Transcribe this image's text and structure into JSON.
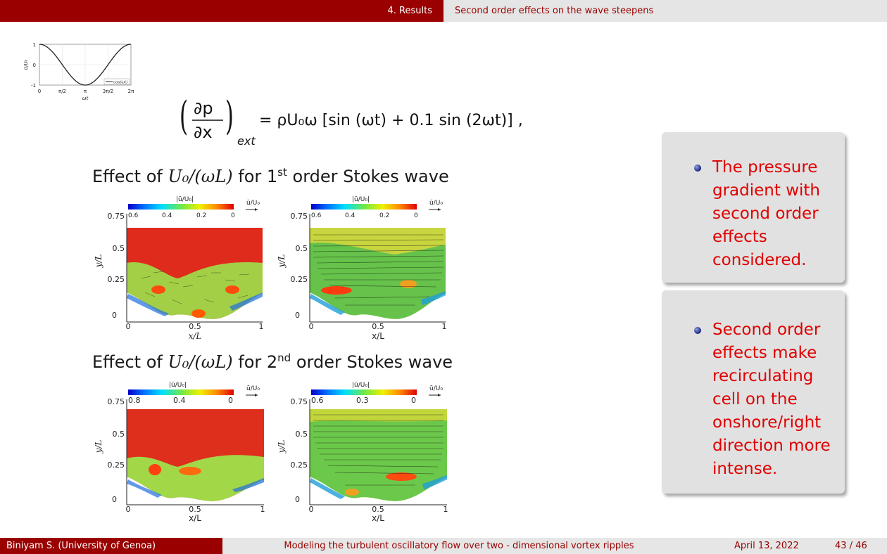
{
  "header": {
    "section": "4. Results",
    "subsection": "Second order effects on the wave steepens"
  },
  "inset_plot": {
    "ylabel": "ū/U₀",
    "xlabel": "ωt",
    "yticks": [
      "1",
      "0",
      "-1"
    ],
    "xticks": [
      "0",
      "π/2",
      "π",
      "3π/2",
      "2π"
    ],
    "legend": "cos(ωt)",
    "chart_data": {
      "type": "line",
      "series": [
        {
          "name": "cos(ωt)",
          "function": "cos"
        }
      ],
      "xlim": [
        0,
        6.2832
      ],
      "ylim": [
        -1,
        1
      ],
      "grid": true,
      "legend_position": "bottom-right"
    }
  },
  "formula": {
    "lhs_num": "∂p",
    "lhs_den": "∂x",
    "subscript": "ext",
    "rhs": "= ρU₀ω [sin (ωt) + 0.1 sin (2ωt)] ,"
  },
  "section1": {
    "text_a": "Effect of ",
    "var": "U₀/(ωL)",
    "text_b": " for 1",
    "sup": "st",
    "text_c": " order Stokes wave"
  },
  "section2": {
    "text_a": "Effect of ",
    "var": "U₀/(ωL)",
    "text_b": " for 2",
    "sup": "nd",
    "text_c": " order Stokes wave"
  },
  "plots": [
    {
      "cbar_title": "|ū/U₀|",
      "cbar_ticks": [
        "0.6",
        "0.4",
        "0.2",
        "0"
      ],
      "arrow_label": "ū/U₀",
      "ylabel": "y/L",
      "xlabel": "x/L",
      "yticks": [
        "0.75",
        "0.5",
        "0.25",
        "0"
      ],
      "xticks": [
        "0",
        "0.5",
        "1"
      ]
    },
    {
      "cbar_title": "|ū/U₀|",
      "cbar_ticks": [
        "0.6",
        "0.4",
        "0.2",
        "0"
      ],
      "arrow_label": "ū/U₀",
      "ylabel": "y/L",
      "xlabel": "x/L",
      "yticks": [
        "0.75",
        "0.5",
        "0.25",
        "0"
      ],
      "xticks": [
        "0",
        "0.5",
        "1"
      ]
    },
    {
      "cbar_title": "|ū/U₀|",
      "cbar_ticks": [
        "0.8",
        "0.4",
        "0"
      ],
      "arrow_label": "ū/U₀",
      "ylabel": "y/L",
      "xlabel": "x/L",
      "yticks": [
        "0.75",
        "0.5",
        "0.25",
        "0"
      ],
      "xticks": [
        "0",
        "0.5",
        "1"
      ]
    },
    {
      "cbar_title": "|ū/U₀|",
      "cbar_ticks": [
        "0.6",
        "0.3",
        "0"
      ],
      "arrow_label": "ū/U₀",
      "ylabel": "y/L",
      "xlabel": "x/L",
      "yticks": [
        "0.75",
        "0.5",
        "0.25",
        "0"
      ],
      "xticks": [
        "0",
        "0.5",
        "1"
      ]
    }
  ],
  "box1": {
    "text": "The pressure gradient with second order effects considered."
  },
  "box2": {
    "text": "Second order effects make recirculating cell on the onshore/right direction more intense."
  },
  "footer": {
    "author": "Biniyam S.  (University of Genoa)",
    "title": "Modeling the turbulent oscillatory flow over two - dimensional vortex ripples",
    "date": "April 13, 2022",
    "page": "43 / 46"
  },
  "colors": {
    "accent": "#9a0000",
    "highlight": "#e00000"
  }
}
